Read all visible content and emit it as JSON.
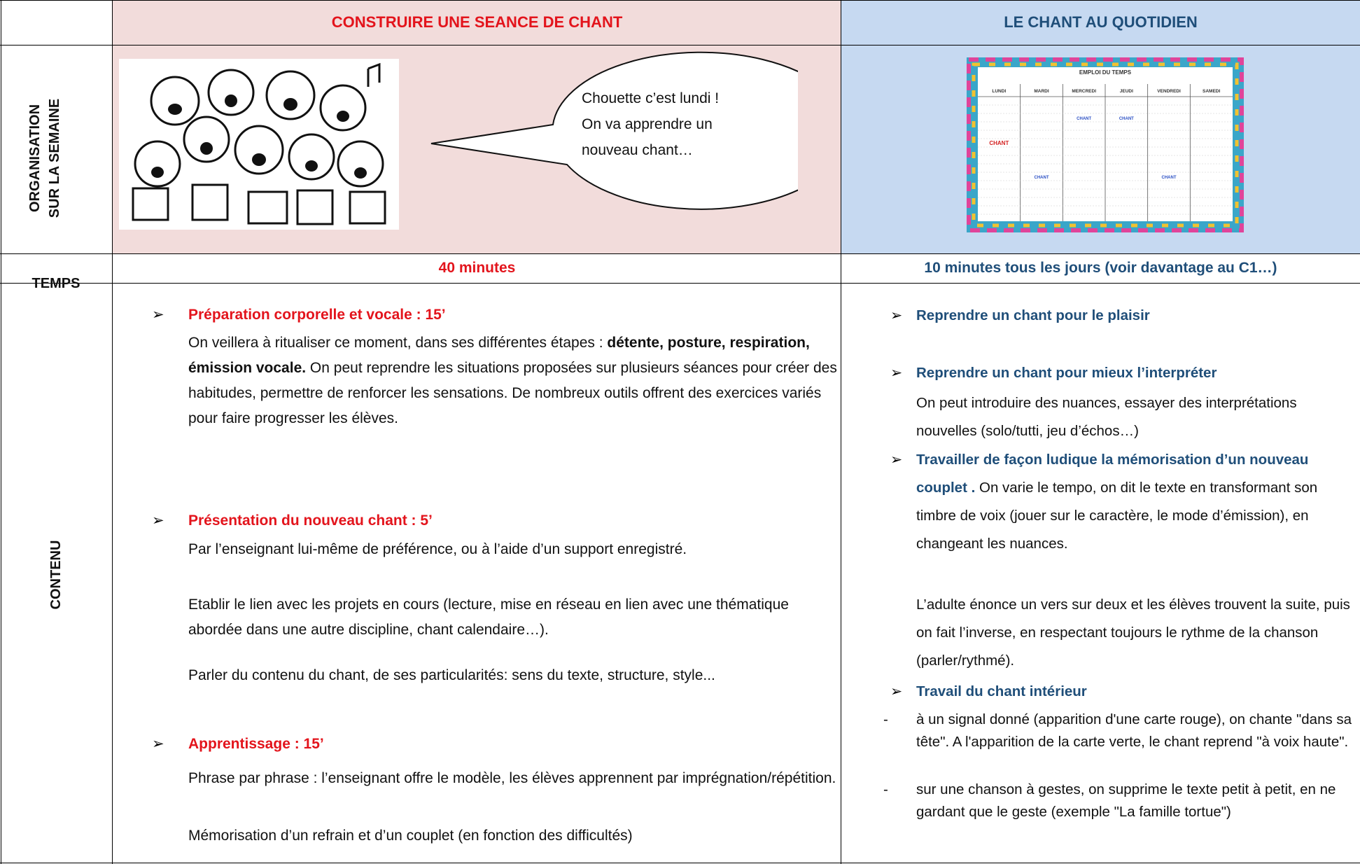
{
  "header": {
    "left_title": "CONSTRUIRE UNE SEANCE DE CHANT",
    "right_title": "LE CHANT AU QUOTIDIEN"
  },
  "organisation": {
    "label": [
      "ORGANISATION",
      "SUR LA SEMAINE"
    ],
    "speech": [
      "Chouette c’est lundi !",
      "On va apprendre un",
      "nouveau chant…"
    ],
    "timetable": {
      "title": "EMPLOI DU TEMPS",
      "days": [
        "LUNDI",
        "MARDI",
        "MERCREDI",
        "JEUDI",
        "VENDREDI",
        "SAMEDI"
      ],
      "labels": [
        "CHANT",
        "CHANT",
        "CHANT",
        "CHANT",
        "CHANT"
      ]
    }
  },
  "temps": {
    "label": "TEMPS",
    "left": "40 minutes",
    "right": "10 minutes tous les jours (voir davantage au C1…)"
  },
  "contenu": {
    "label": "CONTENU",
    "left": [
      {
        "heading": "Préparation corporelle et vocale : 15’",
        "paragraphs": [
          [
            "On veillera à ritualiser ce moment, dans ses différentes étapes : ",
            "détente, posture, respiration, émission vocale.",
            " On peut reprendre les situations proposées sur plusieurs séances pour créer des habitudes, permettre de renforcer les sensations. De nombreux outils offrent des exercices variés pour faire progresser les élèves."
          ]
        ]
      },
      {
        "heading": "Présentation du nouveau chant : 5’",
        "paragraphs": [
          [
            "Par l’enseignant lui-même de préférence, ou à l’aide d’un support enregistré."
          ],
          [
            "Etablir le lien avec les projets en cours (lecture, mise en réseau en lien avec une thématique abordée dans une autre discipline, chant calendaire…)."
          ],
          [
            "Parler du contenu du chant, de ses particularités: sens du texte, structure, style..."
          ]
        ]
      },
      {
        "heading": "Apprentissage : 15’",
        "paragraphs": [
          [
            "Phrase par phrase : l’enseignant offre le modèle, les élèves apprennent par imprégnation/répétition."
          ],
          [
            "Mémorisation d’un refrain et d’un couplet (en fonction des difficultés)"
          ]
        ]
      }
    ],
    "right": [
      {
        "heading": "Reprendre un chant pour le plaisir"
      },
      {
        "heading": "Reprendre un chant pour mieux l’interpréter",
        "text": "On peut introduire des nuances, essayer des interprétations nouvelles (solo/tutti, jeu d’échos…)"
      },
      {
        "heading": "Travailler de façon ludique la mémorisation d’un nouveau couplet .",
        "text": " On varie le tempo, on dit le texte en transformant son timbre de voix (jouer sur le caractère, le mode d’émission), en changeant les nuances.",
        "extra": "L’adulte énonce un vers sur deux et les élèves trouvent la suite, puis on fait l’inverse, en respectant toujours le rythme de la chanson (parler/rythmé)."
      },
      {
        "heading": "Travail du chant intérieur",
        "items": [
          "à un signal donné (apparition d'une carte rouge), on chante \"dans sa tête\". A l'apparition de la carte verte, le chant reprend \"à voix haute\".",
          "sur une chanson à gestes, on supprime le texte petit à petit, en ne gardant que le geste (exemple \"La famille tortue\")"
        ]
      }
    ]
  }
}
